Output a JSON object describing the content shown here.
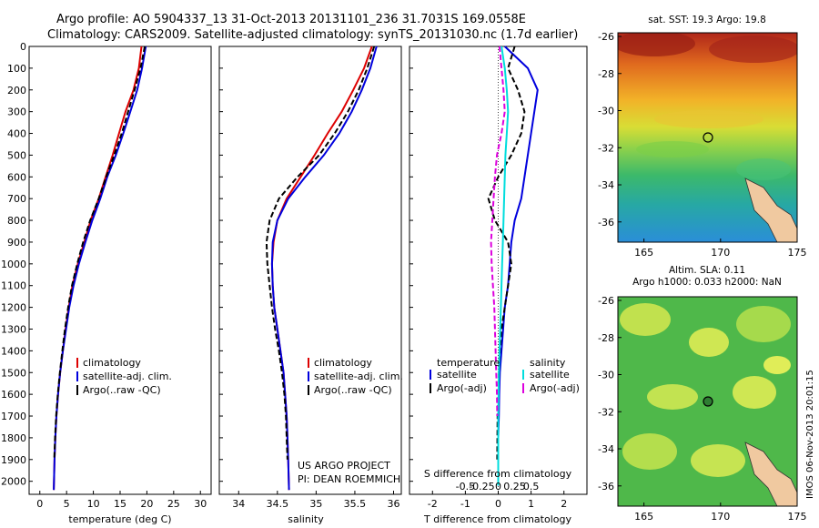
{
  "figure": {
    "title_line1": "Argo profile: AO 5904337_13 31-Oct-2013 20131101_236 31.7031S 169.0558E",
    "title_line2": "Climatology: CARS2009. Satellite-adjusted climatology: synTS_20131030.nc (1.7d earlier)",
    "side_stamp": "IMOS 06-Nov-2013 20:01:15",
    "project_line1": "US ARGO PROJECT",
    "project_line2": "PI: DEAN ROEMMICH",
    "colors": {
      "climatology": "#dd0000",
      "satellite": "#0000dd",
      "argo": "#000000",
      "satellite_s": "#00dddd",
      "argo_s": "#dd00dd"
    }
  },
  "legend_profiles": [
    "climatology",
    "satellite-adj. clim.",
    "Argo(..raw -QC)"
  ],
  "legend_diff": {
    "temperature_head": "temperature",
    "salinity_head": "salinity",
    "t_sat": "satellite",
    "t_argo": "Argo(-adj)",
    "s_sat": "satellite",
    "s_argo": "Argo(-adj)"
  },
  "sst_map": {
    "title": "sat. SST: 19.3 Argo: 19.8",
    "xticks": [
      "165",
      "170",
      "175"
    ],
    "yticks": [
      "-26",
      "-28",
      "-30",
      "-32",
      "-34",
      "-36"
    ]
  },
  "sla_map": {
    "title1": "Altim. SLA: 0.11",
    "title2": "Argo h1000: 0.033 h2000: NaN",
    "xticks": [
      "165",
      "170",
      "175"
    ],
    "yticks": [
      "-26",
      "-28",
      "-30",
      "-32",
      "-34",
      "-36"
    ]
  },
  "chart_data": [
    {
      "type": "line",
      "xlabel": "temperature (deg C)",
      "ylabel": "",
      "xlim": [
        -2,
        32
      ],
      "ylim": [
        2060,
        0
      ],
      "xticks": [
        0,
        5,
        10,
        15,
        20,
        25,
        30
      ],
      "yticks": [
        0,
        100,
        200,
        300,
        400,
        500,
        600,
        700,
        800,
        900,
        1000,
        1100,
        1200,
        1300,
        1400,
        1500,
        1600,
        1700,
        1800,
        1900,
        2000
      ],
      "series": [
        {
          "name": "climatology",
          "color": "#dd0000",
          "dash": "solid",
          "x": [
            19.0,
            18.5,
            17.5,
            16.0,
            14.8,
            13.6,
            12.3,
            11.0,
            9.5,
            8.3,
            7.1,
            6.1,
            5.4,
            4.8,
            4.3,
            3.8,
            3.4,
            3.1,
            2.9,
            2.75,
            2.6
          ],
          "y": [
            0,
            100,
            200,
            300,
            400,
            500,
            600,
            700,
            800,
            900,
            1000,
            1100,
            1200,
            1300,
            1400,
            1500,
            1600,
            1700,
            1800,
            1900,
            2040
          ]
        },
        {
          "name": "satellite-adj. clim.",
          "color": "#0000dd",
          "dash": "solid",
          "x": [
            19.8,
            19.1,
            18.2,
            16.9,
            15.6,
            14.2,
            12.6,
            11.3,
            9.8,
            8.5,
            7.3,
            6.3,
            5.5,
            4.9,
            4.3,
            3.8,
            3.4,
            3.1,
            2.9,
            2.75,
            2.6
          ],
          "y": [
            0,
            100,
            200,
            300,
            400,
            500,
            600,
            700,
            800,
            900,
            1000,
            1100,
            1200,
            1300,
            1400,
            1500,
            1600,
            1700,
            1800,
            1900,
            2040
          ]
        },
        {
          "name": "Argo(..raw -QC)",
          "color": "#000000",
          "dash": "dash",
          "x": [
            19.6,
            18.8,
            17.7,
            16.5,
            15.3,
            13.9,
            12.4,
            11.0,
            9.4,
            8.1,
            7.0,
            6.0,
            5.3,
            4.7,
            4.2,
            3.75,
            3.35,
            3.05,
            2.85,
            2.7
          ],
          "y": [
            0,
            100,
            200,
            300,
            400,
            500,
            600,
            700,
            800,
            900,
            1000,
            1100,
            1200,
            1300,
            1400,
            1500,
            1600,
            1700,
            1800,
            1900
          ]
        }
      ]
    },
    {
      "type": "line",
      "xlabel": "salinity",
      "ylabel": "",
      "xlim": [
        33.75,
        36.1
      ],
      "ylim": [
        2060,
        0
      ],
      "xticks": [
        34,
        34.5,
        35,
        35.5,
        36
      ],
      "xtick_labels": [
        "34",
        "34.5",
        "35",
        "35.5",
        "36"
      ],
      "series": [
        {
          "name": "climatology",
          "color": "#dd0000",
          "dash": "solid",
          "x": [
            35.72,
            35.62,
            35.48,
            35.33,
            35.15,
            34.98,
            34.8,
            34.62,
            34.5,
            34.45,
            34.43,
            34.44,
            34.46,
            34.5,
            34.54,
            34.58,
            34.6,
            34.62,
            34.63,
            34.64,
            34.65
          ],
          "y": [
            0,
            100,
            200,
            300,
            400,
            500,
            600,
            700,
            800,
            900,
            1000,
            1100,
            1200,
            1300,
            1400,
            1500,
            1600,
            1700,
            1800,
            1900,
            2040
          ]
        },
        {
          "name": "satellite-adj. clim.",
          "color": "#0000dd",
          "dash": "solid",
          "x": [
            35.78,
            35.7,
            35.59,
            35.46,
            35.3,
            35.1,
            34.86,
            34.64,
            34.5,
            34.44,
            34.43,
            34.44,
            34.46,
            34.5,
            34.54,
            34.58,
            34.6,
            34.62,
            34.63,
            34.64,
            34.65
          ],
          "y": [
            0,
            100,
            200,
            300,
            400,
            500,
            600,
            700,
            800,
            900,
            1000,
            1100,
            1200,
            1300,
            1400,
            1500,
            1600,
            1700,
            1800,
            1900,
            2040
          ]
        },
        {
          "name": "Argo(..raw -QC)",
          "color": "#000000",
          "dash": "dash",
          "x": [
            35.75,
            35.66,
            35.55,
            35.41,
            35.24,
            35.04,
            34.76,
            34.52,
            34.4,
            34.36,
            34.37,
            34.4,
            34.43,
            34.47,
            34.52,
            34.56,
            34.59,
            34.61,
            34.62,
            34.63
          ],
          "y": [
            0,
            100,
            200,
            300,
            400,
            500,
            600,
            700,
            800,
            900,
            1000,
            1100,
            1200,
            1300,
            1400,
            1500,
            1600,
            1700,
            1800,
            1900
          ]
        }
      ]
    },
    {
      "type": "line",
      "xlabel": "T difference from climatology",
      "xlabel_top": "S difference from climatology",
      "xlim": [
        -2.7,
        2.7
      ],
      "ylim": [
        2060,
        0
      ],
      "xticks": [
        -2,
        -1,
        0,
        1,
        2
      ],
      "s_ticks": [
        -0.5,
        -0.25,
        0,
        0.25,
        0.5
      ],
      "s_tick_labels": [
        "-0.5",
        "-0.25",
        "0",
        "0.25",
        "0.5"
      ],
      "series": [
        {
          "name": "T satellite",
          "color": "#0000dd",
          "dash": "solid",
          "x": [
            0.2,
            0.9,
            1.2,
            1.1,
            1.0,
            0.9,
            0.8,
            0.7,
            0.5,
            0.4,
            0.35,
            0.3,
            0.2,
            0.15,
            0.1,
            0.05,
            0.03,
            0.02,
            0.0,
            0.0
          ],
          "y": [
            0,
            100,
            200,
            300,
            400,
            500,
            600,
            700,
            800,
            900,
            1000,
            1100,
            1200,
            1300,
            1400,
            1500,
            1600,
            1700,
            1800,
            2020
          ]
        },
        {
          "name": "T Argo(-adj)",
          "color": "#000000",
          "dash": "dash",
          "x": [
            0.5,
            0.3,
            0.6,
            0.8,
            0.7,
            0.4,
            0.0,
            -0.3,
            -0.1,
            0.3,
            0.4,
            0.3,
            0.2,
            0.1,
            0.05,
            0.02,
            0.0,
            -0.02,
            -0.03
          ],
          "y": [
            0,
            100,
            200,
            300,
            400,
            500,
            600,
            700,
            800,
            900,
            1000,
            1100,
            1200,
            1300,
            1400,
            1500,
            1600,
            1700,
            1900
          ]
        },
        {
          "name": "S satellite",
          "color": "#00dddd",
          "dash": "solid",
          "x": [
            0.05,
            0.1,
            0.13,
            0.15,
            0.13,
            0.11,
            0.1,
            0.09,
            0.08,
            0.07,
            0.06,
            0.05,
            0.04,
            0.03,
            0.02,
            0.01,
            0.0,
            0.0
          ],
          "y": [
            0,
            100,
            200,
            300,
            400,
            500,
            600,
            700,
            800,
            900,
            1000,
            1100,
            1200,
            1300,
            1400,
            1500,
            1700,
            2020
          ]
        },
        {
          "name": "S Argo(-adj)",
          "color": "#dd00dd",
          "dash": "dash",
          "x": [
            0.02,
            0.05,
            0.08,
            0.1,
            0.05,
            -0.02,
            -0.05,
            -0.07,
            -0.09,
            -0.11,
            -0.1,
            -0.08,
            -0.06,
            -0.05,
            -0.04,
            -0.03,
            -0.02,
            -0.015
          ],
          "y": [
            0,
            100,
            200,
            300,
            400,
            500,
            600,
            700,
            800,
            900,
            1000,
            1100,
            1200,
            1300,
            1400,
            1500,
            1600,
            1700
          ]
        }
      ]
    }
  ]
}
